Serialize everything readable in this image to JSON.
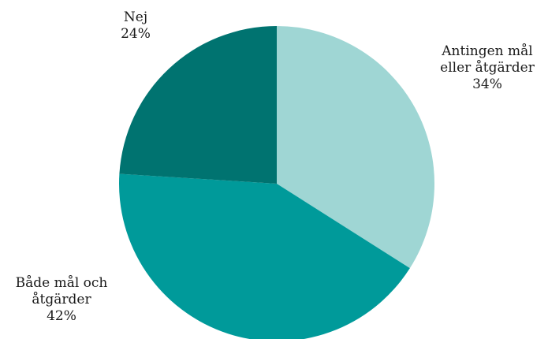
{
  "chart_data": {
    "type": "pie",
    "slices": [
      {
        "label_lines": [
          "Antingen mål",
          "eller åtgärder"
        ],
        "value": 34,
        "value_label": "34%",
        "color": "#9fd6d4"
      },
      {
        "label_lines": [
          "Både mål och",
          "åtgärder"
        ],
        "value": 42,
        "value_label": "42%",
        "color": "#009a9a"
      },
      {
        "label_lines": [
          "Nej"
        ],
        "value": 24,
        "value_label": "24%",
        "color": "#007370"
      }
    ],
    "start_angle_deg": 0,
    "direction": "clockwise",
    "legend": "none"
  }
}
